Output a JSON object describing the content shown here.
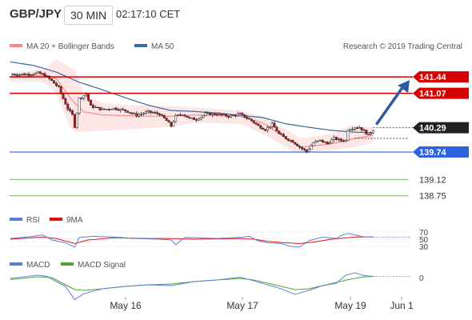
{
  "header": {
    "symbol": "GBP/JPY",
    "timeframe": "30 MIN",
    "clock": "02:17:10 CET"
  },
  "source": "Research © 2019 Trading Central",
  "colors": {
    "ma20": "#f48a8a",
    "ma50": "#3a68a3",
    "bb_fill": "#fde6e6",
    "red_level": "#d70000",
    "blue_level": "#2f62de",
    "green_level": "#4c9a3a",
    "bull": "#ffffff",
    "bear": "#c41212",
    "arrow": "#2d5a9f",
    "rsi": "#5b7fd6",
    "rsi_ma": "#e11111",
    "macd": "#5b7fd6",
    "macd_signal": "#4fa62f"
  },
  "chart_data": [
    {
      "type": "candlestick",
      "x_ticks": [
        "May 16",
        "May 17",
        "May 19",
        "Jun 1"
      ],
      "legend": [
        {
          "name": "MA 20 + Bollinger Bands",
          "color": "#f48a8a"
        },
        {
          "name": "MA 50",
          "color": "#3a68a3"
        }
      ],
      "last_price": "140.29",
      "levels": [
        {
          "value": 141.44,
          "label": "141.44",
          "style": "resistance",
          "color": "#d70000"
        },
        {
          "value": 141.07,
          "label": "141.07",
          "style": "resistance",
          "color": "#d70000"
        },
        {
          "value": 139.74,
          "label": "139.74",
          "style": "support",
          "color": "#2f62de"
        },
        {
          "value": 139.12,
          "label": "139.12",
          "style": "target",
          "color": "#4c9a3a"
        },
        {
          "value": 138.75,
          "label": "138.75",
          "style": "target",
          "color": "#4c9a3a"
        }
      ],
      "anchors": [
        [
          0,
          141.5
        ],
        [
          8,
          141.5
        ],
        [
          12,
          141.53
        ],
        [
          15,
          141.48
        ],
        [
          18,
          141.35
        ],
        [
          21,
          141.2
        ],
        [
          23,
          140.95
        ],
        [
          25,
          140.72
        ],
        [
          27,
          140.58
        ],
        [
          28,
          140.32
        ],
        [
          30,
          140.95
        ],
        [
          33,
          141.05
        ],
        [
          35,
          140.78
        ],
        [
          40,
          140.7
        ],
        [
          45,
          140.73
        ],
        [
          50,
          140.68
        ],
        [
          55,
          140.57
        ],
        [
          60,
          140.65
        ],
        [
          65,
          140.6
        ],
        [
          68,
          140.45
        ],
        [
          70,
          140.33
        ],
        [
          72,
          140.55
        ],
        [
          75,
          140.6
        ],
        [
          78,
          140.5
        ],
        [
          81,
          140.48
        ],
        [
          85,
          140.6
        ],
        [
          90,
          140.6
        ],
        [
          95,
          140.55
        ],
        [
          100,
          140.6
        ],
        [
          105,
          140.45
        ],
        [
          108,
          140.33
        ],
        [
          111,
          140.25
        ],
        [
          114,
          140.37
        ],
        [
          117,
          140.15
        ],
        [
          120,
          140.05
        ],
        [
          123,
          139.98
        ],
        [
          126,
          139.85
        ],
        [
          129,
          139.75
        ],
        [
          132,
          139.95
        ],
        [
          135,
          140.0
        ],
        [
          138,
          139.93
        ],
        [
          141,
          140.05
        ],
        [
          144,
          140.0
        ],
        [
          146,
          140.0
        ],
        [
          147,
          140.25
        ],
        [
          150,
          140.3
        ],
        [
          152,
          140.3
        ],
        [
          154,
          140.22
        ],
        [
          156,
          140.12
        ],
        [
          158,
          140.25
        ]
      ],
      "bb_up": [
        [
          0,
          141.5
        ],
        [
          15,
          141.62
        ],
        [
          20,
          141.85
        ],
        [
          28,
          141.6
        ],
        [
          32,
          141.05
        ],
        [
          40,
          140.85
        ],
        [
          60,
          140.78
        ],
        [
          70,
          140.78
        ],
        [
          80,
          140.75
        ],
        [
          100,
          140.68
        ],
        [
          110,
          140.55
        ],
        [
          120,
          140.25
        ],
        [
          127,
          140.05
        ],
        [
          140,
          140.15
        ],
        [
          148,
          140.35
        ],
        [
          158,
          140.3
        ]
      ],
      "bb_lo": [
        [
          0,
          141.35
        ],
        [
          15,
          141.32
        ],
        [
          20,
          141.05
        ],
        [
          27,
          140.18
        ],
        [
          32,
          140.2
        ],
        [
          40,
          140.22
        ],
        [
          60,
          140.28
        ],
        [
          70,
          140.32
        ],
        [
          80,
          140.4
        ],
        [
          100,
          140.38
        ],
        [
          110,
          140.15
        ],
        [
          120,
          139.85
        ],
        [
          124,
          139.72
        ],
        [
          140,
          139.78
        ],
        [
          150,
          139.85
        ],
        [
          158,
          139.95
        ]
      ],
      "ma20": [
        [
          0,
          141.45
        ],
        [
          15,
          141.48
        ],
        [
          20,
          141.4
        ],
        [
          27,
          140.9
        ],
        [
          32,
          140.65
        ],
        [
          40,
          140.58
        ],
        [
          60,
          140.55
        ],
        [
          70,
          140.55
        ],
        [
          80,
          140.58
        ],
        [
          100,
          140.55
        ],
        [
          110,
          140.4
        ],
        [
          120,
          140.05
        ],
        [
          127,
          139.85
        ],
        [
          140,
          139.93
        ],
        [
          150,
          140.05
        ],
        [
          158,
          140.12
        ]
      ],
      "ma50": [
        [
          0,
          141.78
        ],
        [
          10,
          141.7
        ],
        [
          20,
          141.55
        ],
        [
          30,
          141.32
        ],
        [
          40,
          141.15
        ],
        [
          50,
          140.97
        ],
        [
          60,
          140.8
        ],
        [
          70,
          140.68
        ],
        [
          80,
          140.66
        ],
        [
          90,
          140.62
        ],
        [
          100,
          140.57
        ],
        [
          110,
          140.52
        ],
        [
          120,
          140.38
        ],
        [
          130,
          140.3
        ],
        [
          140,
          140.23
        ],
        [
          150,
          140.19
        ],
        [
          158,
          140.18
        ]
      ],
      "forecast": [
        [
          158,
          140.29
        ],
        [
          167,
          141.44
        ]
      ]
    },
    {
      "type": "line",
      "legend": [
        {
          "name": "RSI",
          "color": "#5b7fd6"
        },
        {
          "name": "9MA",
          "color": "#e11111"
        }
      ],
      "levels": [
        70,
        50,
        30
      ],
      "series": [
        {
          "name": "RSI",
          "points": [
            [
              0,
              52
            ],
            [
              10,
              58
            ],
            [
              14,
              62
            ],
            [
              18,
              48
            ],
            [
              24,
              40
            ],
            [
              28,
              28
            ],
            [
              30,
              55
            ],
            [
              36,
              58
            ],
            [
              45,
              56
            ],
            [
              55,
              52
            ],
            [
              65,
              50
            ],
            [
              70,
              48
            ],
            [
              72,
              35
            ],
            [
              76,
              55
            ],
            [
              90,
              52
            ],
            [
              100,
              55
            ],
            [
              104,
              58
            ],
            [
              108,
              45
            ],
            [
              112,
              40
            ],
            [
              118,
              38
            ],
            [
              122,
              30
            ],
            [
              126,
              28
            ],
            [
              130,
              46
            ],
            [
              136,
              56
            ],
            [
              142,
              52
            ],
            [
              144,
              60
            ],
            [
              147,
              66
            ],
            [
              150,
              62
            ],
            [
              154,
              56
            ],
            [
              158,
              56
            ]
          ]
        },
        {
          "name": "9MA",
          "points": [
            [
              0,
              50
            ],
            [
              14,
              56
            ],
            [
              20,
              52
            ],
            [
              28,
              38
            ],
            [
              34,
              48
            ],
            [
              45,
              54
            ],
            [
              60,
              52
            ],
            [
              70,
              52
            ],
            [
              80,
              50
            ],
            [
              100,
              52
            ],
            [
              106,
              50
            ],
            [
              112,
              44
            ],
            [
              120,
              40
            ],
            [
              126,
              38
            ],
            [
              132,
              42
            ],
            [
              140,
              50
            ],
            [
              150,
              56
            ],
            [
              158,
              56
            ]
          ]
        }
      ]
    },
    {
      "type": "line",
      "y_ticks": [
        "0"
      ],
      "legend": [
        {
          "name": "MACD",
          "color": "#5b7fd6"
        },
        {
          "name": "MACD Signal",
          "color": "#4fa62f"
        }
      ],
      "series": [
        {
          "name": "MACD",
          "points": [
            [
              0,
              -0.02
            ],
            [
              12,
              0.06
            ],
            [
              16,
              0.03
            ],
            [
              20,
              -0.1
            ],
            [
              24,
              -0.22
            ],
            [
              28,
              -0.55
            ],
            [
              32,
              -0.4
            ],
            [
              40,
              -0.28
            ],
            [
              50,
              -0.22
            ],
            [
              60,
              -0.18
            ],
            [
              70,
              -0.2
            ],
            [
              80,
              -0.1
            ],
            [
              90,
              -0.06
            ],
            [
              100,
              0.01
            ],
            [
              106,
              -0.08
            ],
            [
              112,
              -0.18
            ],
            [
              118,
              -0.28
            ],
            [
              124,
              -0.42
            ],
            [
              130,
              -0.32
            ],
            [
              136,
              -0.2
            ],
            [
              142,
              -0.14
            ],
            [
              146,
              0.06
            ],
            [
              150,
              0.12
            ],
            [
              154,
              0.05
            ],
            [
              158,
              0.03
            ]
          ]
        },
        {
          "name": "MACD Signal",
          "points": [
            [
              0,
              -0.05
            ],
            [
              12,
              0.02
            ],
            [
              18,
              0.0
            ],
            [
              24,
              -0.18
            ],
            [
              28,
              -0.3
            ],
            [
              32,
              -0.32
            ],
            [
              40,
              -0.28
            ],
            [
              50,
              -0.22
            ],
            [
              60,
              -0.18
            ],
            [
              70,
              -0.16
            ],
            [
              80,
              -0.1
            ],
            [
              90,
              -0.06
            ],
            [
              100,
              -0.02
            ],
            [
              106,
              -0.06
            ],
            [
              112,
              -0.14
            ],
            [
              118,
              -0.22
            ],
            [
              124,
              -0.3
            ],
            [
              130,
              -0.28
            ],
            [
              136,
              -0.2
            ],
            [
              142,
              -0.12
            ],
            [
              148,
              -0.04
            ],
            [
              154,
              0.02
            ],
            [
              158,
              0.03
            ]
          ]
        }
      ]
    }
  ]
}
